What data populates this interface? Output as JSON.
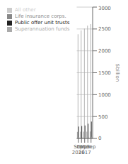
{
  "chart_data": {
    "type": "bar",
    "ylabel": "$billion",
    "categories": [
      "Sep\n2016",
      "Dec",
      "Mar\n2017",
      "Jun",
      "Sep"
    ],
    "series": [
      {
        "name": "Life insurance corps.",
        "color": "#888888",
        "values": [
          150,
          155,
          155,
          155,
          160
        ]
      },
      {
        "name": "Superannuation funds",
        "color": "#aaaaaa",
        "values": [
          2380,
          2470,
          2510,
          2580,
          2610
        ]
      },
      {
        "name": "Public offer unit trusts",
        "color": "#222222",
        "values": [
          270,
          285,
          295,
          335,
          385
        ]
      },
      {
        "name": "All other",
        "color": "#cccccc",
        "values": [
          30,
          32,
          33,
          35,
          38
        ]
      }
    ],
    "ylim": [
      0,
      3000
    ],
    "yticks": [
      0,
      500,
      1000,
      1500,
      2000,
      2500,
      3000
    ],
    "grid": true,
    "legend": "upper left"
  }
}
